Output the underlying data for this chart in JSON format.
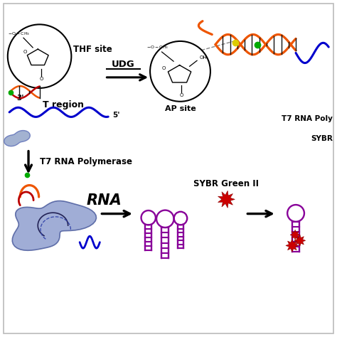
{
  "bg_color": "#ffffff",
  "border_color": "#bbbbbb",
  "black": "#000000",
  "orange": "#EE5500",
  "red": "#BB0000",
  "blue": "#0000CC",
  "dark_blue": "#000088",
  "green": "#00AA00",
  "yellow": "#DDCC00",
  "purple": "#880099",
  "light_blue_fill": "#99AACC",
  "mid_blue_fill": "#6677BB",
  "blob_fill": "#7788BB",
  "blob_edge": "#445599",
  "label_thf": "THF site",
  "label_ap": "AP site",
  "label_t_region": "T region",
  "label_3p": "3'",
  "label_5p": "5'",
  "label_udg": "UDG",
  "label_rna": "RNA",
  "label_t7": "T7 RNA Polymerase",
  "label_t7_short": "T7 RNA Poly",
  "label_sybr": "SYBR Green II",
  "label_sybr_short": "SYBR"
}
